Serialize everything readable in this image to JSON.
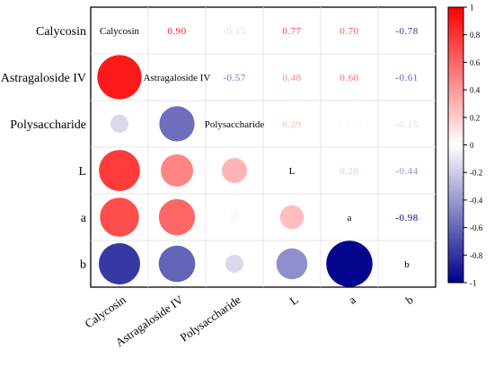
{
  "chart_data": {
    "type": "heatmap",
    "subtype": "correlation-matrix",
    "variables": [
      "Calycosin",
      "Astragaloside IV",
      "Polysaccharide",
      "L",
      "a",
      "b"
    ],
    "matrix": [
      [
        1.0,
        0.9,
        -0.15,
        0.77,
        0.7,
        -0.78
      ],
      [
        0.9,
        1.0,
        -0.57,
        0.48,
        0.6,
        -0.61
      ],
      [
        -0.15,
        -0.57,
        1.0,
        0.29,
        0.038,
        -0.15
      ],
      [
        0.77,
        0.48,
        0.29,
        1.0,
        0.26,
        -0.44
      ],
      [
        0.7,
        0.6,
        0.038,
        0.26,
        1.0,
        -0.98
      ],
      [
        -0.78,
        -0.61,
        -0.15,
        -0.44,
        -0.98,
        1.0
      ]
    ],
    "upper_labels": [
      [
        null,
        "0.90",
        "-0.15",
        "0.77",
        "0.70",
        "-0.78"
      ],
      [
        null,
        null,
        "-0.57",
        "0.48",
        "0.60",
        "-0.61"
      ],
      [
        null,
        null,
        null,
        "0.29",
        "0.038",
        "-0.15"
      ],
      [
        null,
        null,
        null,
        null,
        "0.26",
        "-0.44"
      ],
      [
        null,
        null,
        null,
        null,
        null,
        "-0.98"
      ]
    ],
    "lower_triangle": "circles",
    "upper_triangle": "numbers",
    "diagonal": "variable names",
    "colorbar": {
      "min": -1,
      "max": 1,
      "ticks": [
        "1",
        "0.8",
        "0.6",
        "0.4",
        "0.2",
        "0",
        "-0.2",
        "-0.4",
        "-0.6",
        "-0.8",
        "-1"
      ],
      "tick_values": [
        1,
        0.8,
        0.6,
        0.4,
        0.2,
        0,
        -0.2,
        -0.4,
        -0.6,
        -0.8,
        -1
      ],
      "position": "right"
    },
    "colors": {
      "positive": "#ff0000",
      "zero": "#ffffff",
      "negative": "#00008b"
    }
  }
}
